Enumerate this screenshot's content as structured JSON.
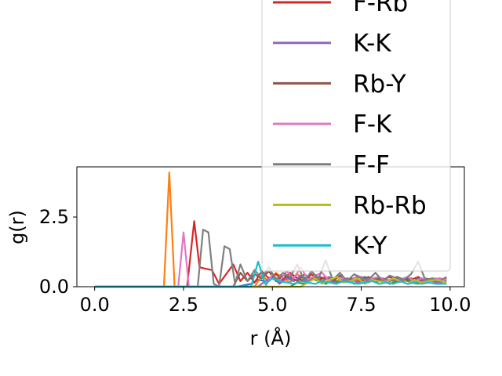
{
  "chart_data": {
    "type": "line",
    "title": "",
    "xlabel": "r (Å)",
    "ylabel": "g(r)",
    "xlim": [
      -0.5,
      10.4
    ],
    "ylim": [
      0,
      4.3
    ],
    "xticks": [
      0.0,
      2.5,
      5.0,
      7.5,
      10.0
    ],
    "xtick_labels": [
      "0.0",
      "2.5",
      "5.0",
      "7.5",
      "10.0"
    ],
    "yticks": [
      0.0,
      2.5
    ],
    "ytick_labels": [
      "0.0",
      "2.5"
    ],
    "grid": false,
    "legend_position": "top-right",
    "legend_visible_entries": [
      "F-Rb",
      "K-K",
      "Rb-Y",
      "F-K",
      "F-F",
      "Rb-Rb",
      "K-Y"
    ],
    "series": [
      {
        "name": "",
        "color": "#1f77b4",
        "x": [
          0,
          4.0,
          4.2,
          4.4,
          4.6,
          4.8,
          5.0,
          5.2,
          5.4,
          5.6,
          5.8,
          6.0,
          6.2,
          6.4,
          6.6,
          6.8,
          7.0,
          7.2,
          7.4,
          7.6,
          7.8,
          8.0,
          8.2,
          8.4,
          8.6,
          8.8,
          9.0,
          9.2,
          9.4,
          9.6,
          9.8
        ],
        "y": [
          0,
          0,
          0.05,
          0.1,
          0.25,
          0.2,
          0.3,
          0.15,
          0.35,
          0.2,
          0.4,
          0.25,
          0.3,
          0.2,
          0.35,
          0.15,
          0.3,
          0.25,
          0.2,
          0.35,
          0.2,
          0.3,
          0.15,
          0.25,
          0.3,
          0.2,
          0.25,
          0.3,
          0.2,
          0.25,
          0.2
        ]
      },
      {
        "name": "",
        "color": "#ff7f0e",
        "x": [
          0,
          1.95,
          2.1,
          2.25,
          2.4,
          4.5,
          4.7,
          4.9,
          5.1,
          5.3,
          5.5,
          5.7,
          5.9,
          6.1,
          6.3,
          6.5,
          6.7,
          6.9,
          7.1,
          7.3,
          7.5,
          7.7,
          7.9,
          8.1,
          8.3,
          8.5,
          8.7,
          8.9,
          9.1,
          9.3,
          9.5,
          9.8
        ],
        "y": [
          0,
          0,
          4.1,
          0,
          0,
          0,
          0.4,
          0.2,
          0.5,
          0.3,
          0.15,
          0.45,
          0.25,
          0.3,
          0.2,
          0.35,
          0.15,
          0.25,
          0.3,
          0.2,
          0.25,
          0.15,
          0.3,
          0.2,
          0.25,
          0.15,
          0.2,
          0.3,
          0.15,
          0.25,
          0.2,
          0.2
        ]
      },
      {
        "name": "",
        "color": "#2ca02c",
        "x": [
          0,
          5.5,
          5.7,
          5.9,
          6.1,
          6.3,
          6.5,
          6.7,
          6.9,
          7.1,
          7.3,
          7.5,
          7.7,
          7.9,
          8.1,
          8.3,
          8.5,
          8.7,
          8.9,
          9.1,
          9.3,
          9.5,
          9.7,
          9.9
        ],
        "y": [
          0,
          0,
          0.15,
          0.1,
          0.3,
          0.2,
          0.1,
          0.25,
          0.15,
          0.3,
          0.1,
          0.2,
          0.3,
          0.15,
          0.25,
          0.1,
          0.2,
          0.3,
          0.15,
          0.1,
          0.25,
          0.2,
          0.15,
          0.2
        ]
      },
      {
        "name": "F-Rb",
        "color": "#d62728",
        "x": [
          0,
          2.6,
          2.8,
          2.95,
          3.1,
          3.3,
          3.5,
          3.7,
          3.9,
          4.1,
          4.3,
          4.5,
          4.7,
          4.9,
          5.1,
          5.3,
          5.5,
          5.7,
          5.9,
          6.1,
          6.3,
          6.5,
          6.7,
          6.9,
          7.1,
          7.3,
          7.5,
          7.7,
          7.9,
          8.1,
          8.3,
          8.5,
          8.7,
          8.9,
          9.1,
          9.3,
          9.5,
          9.7,
          9.9
        ],
        "y": [
          0,
          0,
          2.35,
          0.7,
          0.65,
          0.6,
          0.1,
          0.45,
          0.8,
          0.2,
          0.5,
          0.15,
          0.55,
          0.3,
          0.45,
          0.25,
          0.5,
          0.3,
          0.2,
          0.45,
          0.25,
          0.35,
          0.2,
          0.4,
          0.25,
          0.3,
          0.35,
          0.2,
          0.3,
          0.25,
          0.35,
          0.2,
          0.3,
          0.25,
          0.35,
          0.2,
          0.3,
          0.25,
          0.3
        ]
      },
      {
        "name": "K-K",
        "color": "#9467bd",
        "x": [
          0,
          4.6,
          4.8,
          5.0,
          5.2,
          5.4,
          5.6,
          5.8,
          6.0,
          6.2,
          6.4,
          6.6,
          6.8,
          7.0,
          7.2,
          7.4,
          7.6,
          7.8,
          8.0,
          8.2,
          8.4,
          8.6,
          8.8,
          9.0,
          9.2,
          9.4,
          9.6,
          9.9
        ],
        "y": [
          0,
          0,
          0.2,
          0.35,
          0.1,
          0.3,
          0.2,
          0.4,
          0.15,
          0.3,
          0.2,
          0.35,
          0.1,
          0.25,
          0.3,
          0.15,
          0.25,
          0.2,
          0.3,
          0.15,
          0.25,
          0.2,
          0.3,
          0.15,
          0.2,
          0.25,
          0.15,
          0.2
        ]
      },
      {
        "name": "Rb-Y",
        "color": "#8c564b",
        "x": [
          0,
          3.9,
          4.1,
          4.3,
          4.5,
          4.7,
          4.9,
          5.1,
          5.3,
          5.5,
          5.7,
          5.9,
          6.1,
          6.3,
          6.5,
          6.7,
          6.9,
          7.1,
          7.3,
          7.5,
          7.7,
          7.9,
          8.1,
          8.3,
          8.5,
          8.7,
          8.9,
          9.1,
          9.3,
          9.5,
          9.7,
          9.9
        ],
        "y": [
          0,
          0,
          0.5,
          0.2,
          0.45,
          0.3,
          0.55,
          0.2,
          0.4,
          0.35,
          0.2,
          0.45,
          0.25,
          0.35,
          0.3,
          0.2,
          0.4,
          0.25,
          0.3,
          0.2,
          0.35,
          0.25,
          0.3,
          0.2,
          0.35,
          0.25,
          0.3,
          0.2,
          0.3,
          0.25,
          0.3,
          0.25
        ]
      },
      {
        "name": "F-K",
        "color": "#e377c2",
        "x": [
          0,
          2.35,
          2.5,
          2.65,
          2.8,
          4.8,
          5.0,
          5.2,
          5.4,
          5.6,
          5.8,
          6.0,
          6.2,
          6.4,
          6.6,
          6.8,
          7.0,
          7.2,
          7.4,
          7.6,
          7.8,
          8.0,
          8.2,
          8.4,
          8.6,
          8.8,
          9.0,
          9.2,
          9.4,
          9.6,
          9.9
        ],
        "y": [
          0,
          0,
          1.95,
          0,
          0,
          0,
          0.45,
          0.2,
          0.55,
          0.3,
          0.7,
          0.25,
          0.4,
          0.5,
          0.2,
          0.35,
          0.3,
          0.2,
          0.4,
          0.25,
          0.3,
          0.35,
          0.2,
          0.3,
          0.25,
          0.35,
          0.2,
          0.3,
          0.25,
          0.3,
          0.25
        ]
      },
      {
        "name": "F-F",
        "color": "#7f7f7f",
        "x": [
          0,
          2.9,
          3.05,
          3.2,
          3.35,
          3.5,
          3.65,
          3.8,
          3.95,
          4.1,
          4.3,
          4.5,
          4.7,
          4.9,
          5.1,
          5.3,
          5.5,
          5.7,
          5.9,
          6.1,
          6.3,
          6.5,
          6.7,
          6.9,
          7.1,
          7.3,
          7.5,
          7.7,
          7.9,
          8.1,
          8.3,
          8.5,
          8.7,
          8.9,
          9.1,
          9.3,
          9.5,
          9.7,
          9.9
        ],
        "y": [
          0,
          0,
          2.05,
          1.95,
          0.1,
          0,
          1.45,
          1.35,
          0.1,
          0.8,
          0.2,
          0.6,
          0.3,
          0.7,
          0.25,
          0.5,
          0.35,
          0.8,
          0.2,
          0.55,
          0.3,
          0.95,
          0.25,
          0.5,
          0.2,
          0.45,
          0.3,
          0.25,
          0.5,
          0.2,
          0.4,
          0.3,
          0.25,
          0.45,
          0.9,
          0.25,
          0.3,
          0.2,
          0.35
        ]
      },
      {
        "name": "Rb-Rb",
        "color": "#bcbd22",
        "x": [
          0,
          5.8,
          6.0,
          6.2,
          6.4,
          6.6,
          6.8,
          7.0,
          7.2,
          7.4,
          7.6,
          7.8,
          8.0,
          8.2,
          8.4,
          8.6,
          8.8,
          9.0,
          9.2,
          9.4,
          9.6,
          9.9
        ],
        "y": [
          0,
          0,
          0.15,
          0.3,
          0.1,
          0.25,
          0.35,
          0.15,
          0.2,
          0.3,
          0.1,
          0.25,
          0.2,
          0.15,
          0.3,
          0.2,
          0.1,
          0.25,
          0.15,
          0.2,
          0.25,
          0.15
        ]
      },
      {
        "name": "K-Y",
        "color": "#17becf",
        "x": [
          0,
          4.4,
          4.6,
          4.8,
          5.0,
          5.2,
          5.4,
          5.6,
          5.8,
          6.0,
          6.2,
          6.4,
          6.6,
          6.8,
          7.0,
          7.2,
          7.4,
          7.6,
          7.8,
          8.0,
          8.2,
          8.4,
          8.6,
          8.8,
          9.0,
          9.2,
          9.4,
          9.6,
          9.9
        ],
        "y": [
          0,
          0,
          0.9,
          0.1,
          0.3,
          0.2,
          0.15,
          0.1,
          0.2,
          0.15,
          0.1,
          0.2,
          0.15,
          0.1,
          0.2,
          0.15,
          0.1,
          0.15,
          0.2,
          0.1,
          0.15,
          0.1,
          0.2,
          0.1,
          0.15,
          0.1,
          0.15,
          0.1,
          0.1
        ]
      }
    ]
  }
}
